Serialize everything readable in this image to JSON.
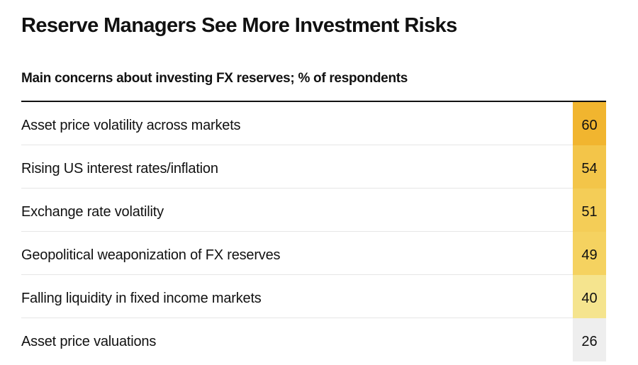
{
  "chart_data": {
    "type": "table",
    "title": "Reserve Managers See More Investment Risks",
    "subtitle": "Main concerns about investing FX reserves; % of respondents",
    "rows": [
      {
        "label": "Asset price volatility across markets",
        "value": 60
      },
      {
        "label": "Rising US interest rates/inflation",
        "value": 54
      },
      {
        "label": "Exchange rate volatility",
        "value": 51
      },
      {
        "label": "Geopolitical weaponization of FX reserves",
        "value": 49
      },
      {
        "label": "Falling liquidity in fixed income markets",
        "value": 40
      },
      {
        "label": "Asset price valuations",
        "value": 26
      }
    ],
    "color_scale": {
      "low": "#eeeeee",
      "mid": "#f7e27a",
      "high": "#f1b52f"
    }
  }
}
